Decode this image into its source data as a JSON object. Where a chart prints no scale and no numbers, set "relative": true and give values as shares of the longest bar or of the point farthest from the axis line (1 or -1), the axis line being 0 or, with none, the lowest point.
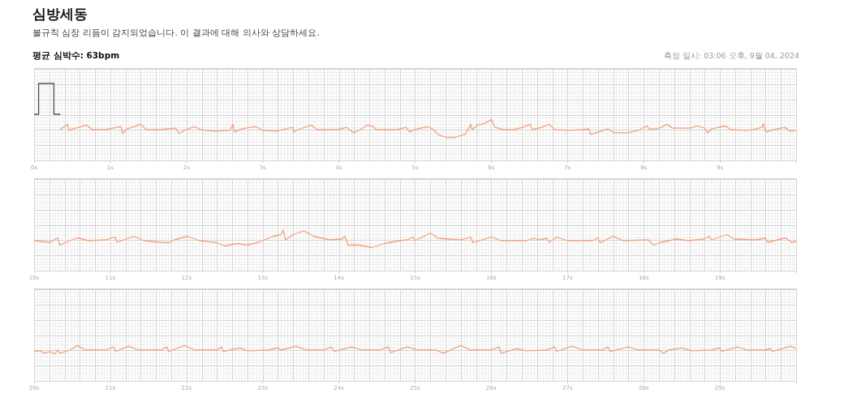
{
  "chart_data": [
    {
      "type": "line",
      "title": "심방세동",
      "subtitle": "불규칙 심장 리듬이 감지되었습니다. 이 결과에 대해 의사와 상담하세요.",
      "annotations": [
        "평균 심박수: 63bpm",
        "측정 일시: 03:06 오후, 9월 04, 2024"
      ],
      "relative": true,
      "xlim": [
        0,
        10
      ],
      "xticks": [
        {
          "value": 0,
          "label": "0s"
        },
        {
          "value": 1,
          "label": "1s"
        },
        {
          "value": 2,
          "label": "2s"
        },
        {
          "value": 3,
          "label": "3s"
        },
        {
          "value": 4,
          "label": "4s"
        },
        {
          "value": 5,
          "label": "5s"
        },
        {
          "value": 6,
          "label": "6s"
        },
        {
          "value": 7,
          "label": "7s"
        },
        {
          "value": 8,
          "label": "8s"
        },
        {
          "value": 9,
          "label": "9s"
        },
        {
          "value": 10,
          "label": null
        }
      ],
      "grid": true,
      "marker": "none",
      "series": [
        {
          "color": "#555555",
          "x": [
            0,
            0.06,
            0.06,
            0.26,
            0.26,
            0.34
          ],
          "values": [
            0.6,
            0.6,
            1,
            1,
            0.6,
            0.6
          ]
        },
        {
          "color": "#f2a27e",
          "x": [
            0.34,
            0.44,
            0.46,
            0.51,
            0.69,
            0.76,
            0.94,
            1.14,
            1.16,
            1.22,
            1.4,
            1.47,
            1.65,
            1.86,
            1.9,
            1.97,
            2.11,
            2.18,
            2.36,
            2.57,
            2.61,
            2.63,
            2.72,
            2.91,
            3.0,
            3.18,
            3.3,
            3.39,
            3.41,
            3.46,
            3.64,
            3.71,
            3.99,
            4.1,
            4.19,
            4.28,
            4.38,
            4.45,
            4.49,
            4.77,
            4.88,
            4.93,
            4.99,
            5.17,
            5.24,
            5.31,
            5.41,
            5.52,
            5.66,
            5.73,
            5.75,
            5.82,
            5.91,
            6.0,
            6.05,
            6.16,
            6.3,
            6.41,
            6.51,
            6.54,
            6.66,
            6.76,
            6.83,
            7.01,
            7.19,
            7.28,
            7.3,
            7.37,
            7.53,
            7.61,
            7.79,
            7.93,
            8.04,
            8.07,
            8.18,
            8.31,
            8.38,
            8.61,
            8.71,
            8.8,
            8.84,
            8.89,
            9.07,
            9.14,
            9.35,
            9.44,
            9.55,
            9.57,
            9.6,
            9.71,
            9.85,
            9.92,
            10.0
          ],
          "values": [
            0.4,
            0.47,
            0.39,
            0.41,
            0.46,
            0.4,
            0.4,
            0.44,
            0.35,
            0.41,
            0.47,
            0.4,
            0.4,
            0.42,
            0.35,
            0.39,
            0.44,
            0.4,
            0.38,
            0.39,
            0.47,
            0.37,
            0.41,
            0.44,
            0.39,
            0.38,
            0.41,
            0.43,
            0.37,
            0.4,
            0.46,
            0.4,
            0.4,
            0.43,
            0.36,
            0.4,
            0.46,
            0.44,
            0.4,
            0.4,
            0.43,
            0.37,
            0.4,
            0.44,
            0.4,
            0.33,
            0.3,
            0.3,
            0.34,
            0.47,
            0.4,
            0.46,
            0.48,
            0.53,
            0.43,
            0.4,
            0.4,
            0.43,
            0.47,
            0.4,
            0.43,
            0.47,
            0.4,
            0.39,
            0.4,
            0.41,
            0.34,
            0.36,
            0.41,
            0.36,
            0.36,
            0.39,
            0.45,
            0.41,
            0.41,
            0.47,
            0.42,
            0.42,
            0.45,
            0.42,
            0.36,
            0.41,
            0.45,
            0.4,
            0.39,
            0.4,
            0.43,
            0.48,
            0.37,
            0.4,
            0.43,
            0.38,
            0.39
          ]
        }
      ]
    },
    {
      "type": "line",
      "relative": true,
      "xlim": [
        10,
        20
      ],
      "xticks": [
        {
          "value": 10,
          "label": "10s"
        },
        {
          "value": 11,
          "label": "11s"
        },
        {
          "value": 12,
          "label": "12s"
        },
        {
          "value": 13,
          "label": "13s"
        },
        {
          "value": 14,
          "label": "14s"
        },
        {
          "value": 15,
          "label": "15s"
        },
        {
          "value": 16,
          "label": "16s"
        },
        {
          "value": 17,
          "label": "17s"
        },
        {
          "value": 18,
          "label": "18s"
        },
        {
          "value": 19,
          "label": "19s"
        },
        {
          "value": 20,
          "label": null
        }
      ],
      "grid": true,
      "marker": "none",
      "series": [
        {
          "color": "#f2a27e",
          "x": [
            10.0,
            10.21,
            10.31,
            10.34,
            10.47,
            10.57,
            10.71,
            10.94,
            11.06,
            11.09,
            11.31,
            11.44,
            11.67,
            11.77,
            11.84,
            12.01,
            12.17,
            12.4,
            12.5,
            12.67,
            12.8,
            12.94,
            13.14,
            13.24,
            13.27,
            13.3,
            13.4,
            13.54,
            13.67,
            13.87,
            14.04,
            14.08,
            14.12,
            14.27,
            14.43,
            14.6,
            14.8,
            14.9,
            14.97,
            15.0,
            15.2,
            15.3,
            15.6,
            15.73,
            15.76,
            16.0,
            16.13,
            16.46,
            16.56,
            16.63,
            16.73,
            16.76,
            16.86,
            17.0,
            17.33,
            17.4,
            17.43,
            17.6,
            17.73,
            18.06,
            18.13,
            18.23,
            18.43,
            18.59,
            18.79,
            18.86,
            18.89,
            19.09,
            19.19,
            19.46,
            19.59,
            19.63,
            19.86,
            19.94,
            20.0
          ],
          "values": [
            0.74,
            0.7,
            0.81,
            0.63,
            0.74,
            0.81,
            0.74,
            0.76,
            0.83,
            0.7,
            0.85,
            0.74,
            0.7,
            0.69,
            0.76,
            0.85,
            0.74,
            0.69,
            0.61,
            0.67,
            0.63,
            0.7,
            0.85,
            0.89,
            1,
            0.76,
            0.89,
            0.98,
            0.85,
            0.76,
            0.78,
            0.85,
            0.63,
            0.63,
            0.57,
            0.67,
            0.74,
            0.76,
            0.83,
            0.74,
            0.93,
            0.8,
            0.76,
            0.83,
            0.69,
            0.83,
            0.74,
            0.74,
            0.8,
            0.76,
            0.8,
            0.7,
            0.83,
            0.74,
            0.74,
            0.81,
            0.69,
            0.85,
            0.74,
            0.76,
            0.63,
            0.7,
            0.78,
            0.74,
            0.78,
            0.85,
            0.76,
            0.89,
            0.78,
            0.76,
            0.8,
            0.7,
            0.81,
            0.7,
            0.72
          ]
        }
      ]
    },
    {
      "type": "line",
      "relative": true,
      "xlim": [
        20,
        30
      ],
      "xticks": [
        {
          "value": 20,
          "label": "20s"
        },
        {
          "value": 21,
          "label": "21s"
        },
        {
          "value": 22,
          "label": "22s"
        },
        {
          "value": 23,
          "label": "23s"
        },
        {
          "value": 24,
          "label": "24s"
        },
        {
          "value": 25,
          "label": "25s"
        },
        {
          "value": 26,
          "label": "26s"
        },
        {
          "value": 27,
          "label": "27s"
        },
        {
          "value": 28,
          "label": "28s"
        },
        {
          "value": 29,
          "label": "29s"
        },
        {
          "value": 30,
          "label": null
        }
      ],
      "grid": true,
      "marker": "none",
      "series": [
        {
          "color": "#f2a27e",
          "x": [
            20.0,
            20.08,
            20.14,
            20.21,
            20.27,
            20.31,
            20.34,
            20.47,
            20.57,
            20.67,
            20.94,
            21.04,
            21.07,
            21.24,
            21.37,
            21.67,
            21.74,
            21.77,
            21.97,
            22.11,
            22.4,
            22.46,
            22.48,
            22.7,
            22.8,
            23.07,
            23.2,
            23.24,
            23.44,
            23.57,
            23.8,
            23.9,
            23.94,
            24.17,
            24.3,
            24.53,
            24.65,
            24.68,
            24.9,
            25.03,
            25.27,
            25.37,
            25.6,
            25.73,
            26.0,
            26.1,
            26.13,
            26.33,
            26.46,
            26.73,
            26.83,
            26.86,
            27.06,
            27.2,
            27.46,
            27.53,
            27.56,
            27.8,
            27.93,
            28.2,
            28.26,
            28.33,
            28.5,
            28.63,
            28.89,
            28.99,
            29.03,
            29.23,
            29.36,
            29.59,
            29.66,
            29.69,
            29.93,
            30.0
          ],
          "values": [
            0.83,
            0.85,
            0.78,
            0.83,
            0.76,
            0.87,
            0.78,
            0.87,
            1,
            0.87,
            0.87,
            0.96,
            0.83,
            0.98,
            0.87,
            0.87,
            0.96,
            0.83,
            1,
            0.87,
            0.87,
            0.96,
            0.83,
            0.93,
            0.85,
            0.87,
            0.93,
            0.87,
            0.98,
            0.87,
            0.87,
            0.96,
            0.83,
            0.96,
            0.87,
            0.87,
            0.96,
            0.8,
            0.96,
            0.87,
            0.87,
            0.78,
            1,
            0.87,
            0.87,
            0.96,
            0.78,
            0.91,
            0.85,
            0.87,
            0.96,
            0.83,
            0.98,
            0.87,
            0.87,
            0.96,
            0.83,
            0.96,
            0.87,
            0.87,
            0.78,
            0.87,
            0.93,
            0.85,
            0.87,
            0.93,
            0.83,
            0.96,
            0.87,
            0.87,
            0.91,
            0.83,
            0.98,
            0.91
          ]
        }
      ]
    }
  ]
}
